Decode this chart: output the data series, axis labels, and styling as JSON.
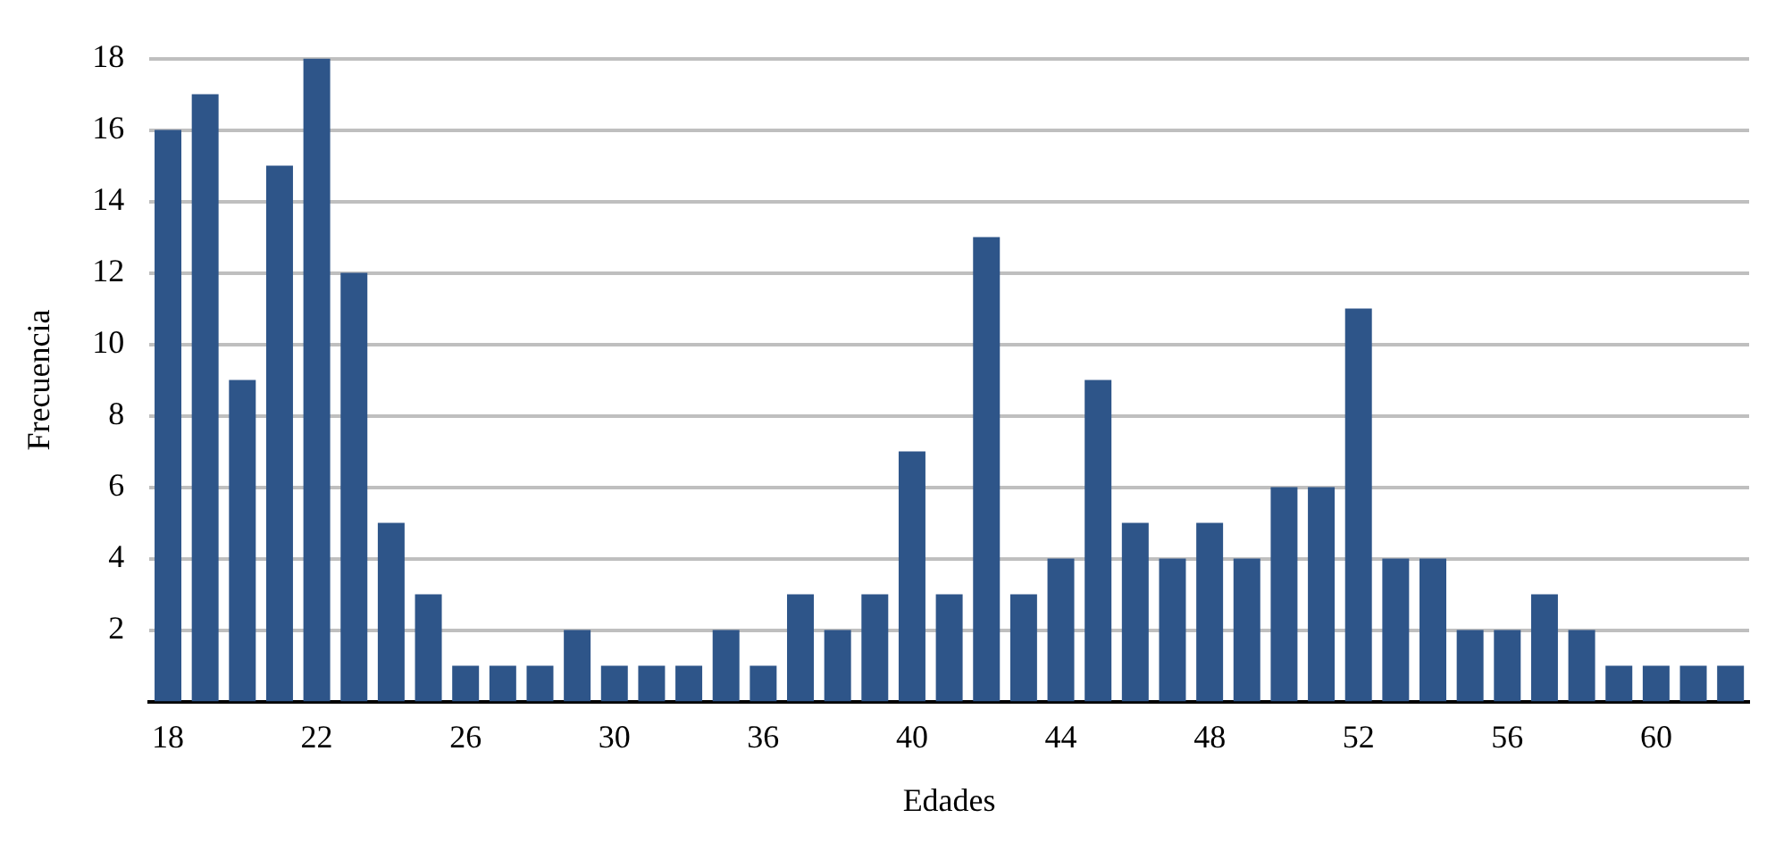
{
  "chart_data": {
    "type": "bar",
    "xlabel": "Edades",
    "ylabel": "Frecuencia",
    "categories": [
      "18",
      null,
      null,
      null,
      "22",
      null,
      null,
      null,
      "26",
      null,
      null,
      null,
      "30",
      null,
      null,
      null,
      "36",
      null,
      null,
      null,
      "40",
      null,
      null,
      null,
      "44",
      null,
      null,
      null,
      "48",
      null,
      null,
      null,
      "52",
      null,
      null,
      null,
      "56",
      null,
      null,
      null,
      "60",
      null,
      null
    ],
    "values": [
      16,
      17,
      9,
      15,
      18,
      12,
      5,
      3,
      1,
      1,
      1,
      2,
      1,
      1,
      1,
      2,
      1,
      3,
      2,
      3,
      7,
      3,
      13,
      3,
      4,
      9,
      5,
      4,
      5,
      4,
      6,
      6,
      11,
      4,
      4,
      2,
      2,
      3,
      2,
      1,
      1,
      1,
      1
    ],
    "color": "#2e5589",
    "ylim": [
      0,
      18
    ],
    "yticks": [
      2,
      4,
      6,
      8,
      10,
      12,
      14,
      16,
      18
    ],
    "grid": "y",
    "legend": false
  }
}
